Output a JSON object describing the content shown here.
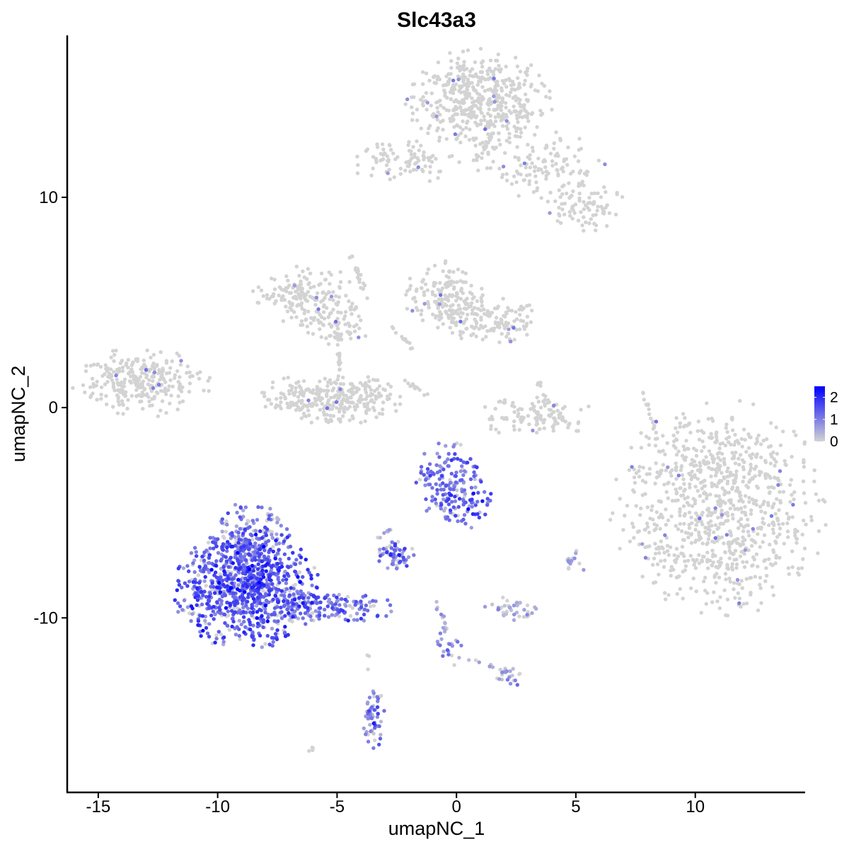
{
  "chart_data": {
    "type": "scatter",
    "title": "Slc43a3",
    "xlabel": "umapNC_1",
    "ylabel": "umapNC_2",
    "xlim": [
      -16.3,
      14.6
    ],
    "ylim": [
      -18.3,
      17.7
    ],
    "x_ticks": [
      -15,
      -10,
      -5,
      0,
      5,
      10
    ],
    "x_tick_labels": [
      "-15",
      "-10",
      "-5",
      "0",
      "5",
      "10"
    ],
    "y_ticks": [
      -10,
      0,
      10
    ],
    "y_tick_labels": [
      "-10",
      "0",
      "10"
    ],
    "color_scale": {
      "low_color": "#d3d3d3",
      "high_color": "#0000ff",
      "min": 0,
      "max": 2.5,
      "legend_ticks": [
        2,
        1,
        0
      ],
      "legend_tick_labels": [
        "2",
        "1",
        "0"
      ]
    },
    "grid": false,
    "legend_position": "right",
    "clusters": [
      {
        "cx": 11.0,
        "cy": -4.8,
        "rx": 2.2,
        "ry": 2.5,
        "n": 900,
        "expr": 0.02
      },
      {
        "cx": 0.9,
        "cy": 14.6,
        "rx": 1.5,
        "ry": 1.2,
        "n": 500,
        "expr": 0.02
      },
      {
        "cx": 3.5,
        "cy": 11.5,
        "rx": 1.4,
        "ry": 0.8,
        "n": 120,
        "expr": 0.02
      },
      {
        "cx": 5.3,
        "cy": 9.5,
        "rx": 0.9,
        "ry": 0.6,
        "n": 80,
        "expr": 0.05
      },
      {
        "cx": -2.2,
        "cy": 11.7,
        "rx": 1.2,
        "ry": 0.5,
        "n": 90,
        "expr": 0.03
      },
      {
        "cx": -13.2,
        "cy": 1.2,
        "rx": 1.4,
        "ry": 0.8,
        "n": 280,
        "expr": 0.05
      },
      {
        "cx": -6.3,
        "cy": 5.3,
        "rx": 1.1,
        "ry": 0.7,
        "n": 160,
        "expr": 0.02
      },
      {
        "cx": -5.1,
        "cy": 3.9,
        "rx": 0.7,
        "ry": 0.5,
        "n": 70,
        "expr": 0.02
      },
      {
        "cx": -5.3,
        "cy": 0.4,
        "rx": 1.5,
        "ry": 0.6,
        "n": 300,
        "expr": 0.02
      },
      {
        "cx": -0.5,
        "cy": 5.3,
        "rx": 0.8,
        "ry": 0.8,
        "n": 150,
        "expr": 0.03
      },
      {
        "cx": 1.4,
        "cy": 4.1,
        "rx": 1.0,
        "ry": 0.6,
        "n": 140,
        "expr": 0.05
      },
      {
        "cx": 3.4,
        "cy": -0.4,
        "rx": 1.2,
        "ry": 0.5,
        "n": 120,
        "expr": 0.04
      },
      {
        "cx": -0.3,
        "cy": -3.5,
        "rx": 0.7,
        "ry": 0.9,
        "n": 150,
        "expr": 1.2
      },
      {
        "cx": 0.6,
        "cy": -4.7,
        "rx": 0.6,
        "ry": 0.5,
        "n": 40,
        "expr": 1.3
      },
      {
        "cx": -8.8,
        "cy": -8.6,
        "rx": 1.5,
        "ry": 1.4,
        "n": 900,
        "expr": 1.4
      },
      {
        "cx": -8.4,
        "cy": -6.2,
        "rx": 0.8,
        "ry": 0.9,
        "n": 160,
        "expr": 1.1
      },
      {
        "cx": -5.3,
        "cy": -9.5,
        "rx": 1.3,
        "ry": 0.4,
        "n": 150,
        "expr": 1.1
      },
      {
        "cx": -2.6,
        "cy": -7.0,
        "rx": 0.4,
        "ry": 0.35,
        "n": 60,
        "expr": 1.1
      },
      {
        "cx": 2.4,
        "cy": -9.6,
        "rx": 0.6,
        "ry": 0.3,
        "n": 40,
        "expr": 0.3
      },
      {
        "cx": -3.5,
        "cy": -14.7,
        "rx": 0.25,
        "ry": 0.8,
        "n": 60,
        "expr": 0.9
      },
      {
        "cx": 2.3,
        "cy": -12.8,
        "rx": 0.35,
        "ry": 0.2,
        "n": 20,
        "expr": 0.6
      },
      {
        "cx": 5.0,
        "cy": -7.3,
        "rx": 0.3,
        "ry": 0.25,
        "n": 15,
        "expr": 0.5
      },
      {
        "cx": -0.3,
        "cy": -11.4,
        "rx": 0.3,
        "ry": 0.5,
        "n": 20,
        "expr": 0.7
      }
    ],
    "streaks": [
      {
        "x1": -4.4,
        "y1": 7.3,
        "x2": -3.6,
        "y2": 4.7,
        "n": 25,
        "expr": 0.02
      },
      {
        "x1": -4.9,
        "y1": 3.5,
        "x2": -4.9,
        "y2": 1.8,
        "n": 15,
        "expr": 0.02
      },
      {
        "x1": 7.8,
        "y1": 0.8,
        "x2": 8.3,
        "y2": -1.0,
        "n": 15,
        "expr": 0.02
      },
      {
        "x1": -2.7,
        "y1": 3.8,
        "x2": -1.8,
        "y2": 2.8,
        "n": 12,
        "expr": 0.02
      },
      {
        "x1": -2.2,
        "y1": 1.3,
        "x2": -1.2,
        "y2": 0.6,
        "n": 14,
        "expr": 0.02
      },
      {
        "x1": 0.8,
        "y1": 11.8,
        "x2": 1.6,
        "y2": 13.2,
        "n": 18,
        "expr": 0.02
      },
      {
        "x1": -0.8,
        "y1": -9.3,
        "x2": -0.3,
        "y2": -11.0,
        "n": 14,
        "expr": 0.3
      },
      {
        "x1": 0.5,
        "y1": -12.0,
        "x2": 2.2,
        "y2": -12.6,
        "n": 10,
        "expr": 0.3
      },
      {
        "x1": -3.3,
        "y1": -6.2,
        "x2": -2.6,
        "y2": -5.7,
        "n": 8,
        "expr": 0.6
      },
      {
        "x1": -3.7,
        "y1": -11.6,
        "x2": -3.7,
        "y2": -12.5,
        "n": 3,
        "expr": 0.02
      },
      {
        "x1": -6.2,
        "y1": -16.3,
        "x2": -5.9,
        "y2": -16.1,
        "n": 4,
        "expr": 0.02
      },
      {
        "x1": 3.3,
        "y1": 1.4,
        "x2": 3.6,
        "y2": 1.0,
        "n": 5,
        "expr": 0.02
      }
    ]
  }
}
